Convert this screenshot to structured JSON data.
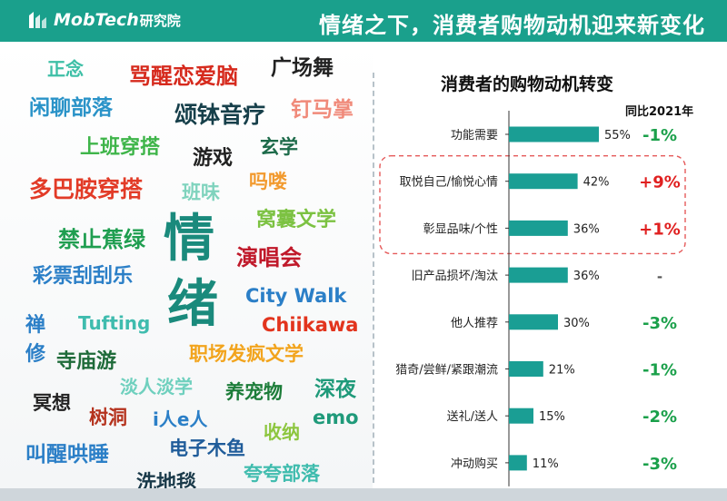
{
  "header": {
    "brand": "MobTech",
    "brand_suffix": "研究院",
    "title": "情绪之下，消费者购物动机迎来新变化"
  },
  "word_cloud": [
    {
      "text": "正念",
      "color": "#3dbfa6"
    },
    {
      "text": "骂醒恋爱脑",
      "color": "#d62a1d"
    },
    {
      "text": "广场舞",
      "color": "#222222"
    },
    {
      "text": "闲聊部落",
      "color": "#2a93c8"
    },
    {
      "text": "颂钵音疗",
      "color": "#163f4a"
    },
    {
      "text": "钉马掌",
      "color": "#f08a7a"
    },
    {
      "text": "上班穿搭",
      "color": "#3fb54a"
    },
    {
      "text": "玄学",
      "color": "#1d6b4a"
    },
    {
      "text": "游戏",
      "color": "#222222"
    },
    {
      "text": "吗喽",
      "color": "#f29a2e"
    },
    {
      "text": "多巴胺穿搭",
      "color": "#e23b27"
    },
    {
      "text": "班味",
      "color": "#7fd3bd"
    },
    {
      "text": "窝囊文学",
      "color": "#7cc242"
    },
    {
      "text": "禁止蕉绿",
      "color": "#1f9e50"
    },
    {
      "text": "情",
      "color": "#1a8a7c"
    },
    {
      "text": "绪",
      "color": "#1a8a7c"
    },
    {
      "text": "演唱会",
      "color": "#c0192a"
    },
    {
      "text": "彩票刮刮乐",
      "color": "#2b7fc7"
    },
    {
      "text": "City Walk",
      "color": "#2b7fc7"
    },
    {
      "text": "禅",
      "color": "#2b7fc7"
    },
    {
      "text": "修",
      "color": "#2b7fc7"
    },
    {
      "text": "Tufting",
      "color": "#3fbcae"
    },
    {
      "text": "Chiikawa",
      "color": "#e2341d"
    },
    {
      "text": "寺庙游",
      "color": "#1f6b3a"
    },
    {
      "text": "职场发疯文学",
      "color": "#f2a41d"
    },
    {
      "text": "淡人淡学",
      "color": "#6fd0be"
    },
    {
      "text": "冥想",
      "color": "#222222"
    },
    {
      "text": "养宠物",
      "color": "#1d7d3a"
    },
    {
      "text": "深夜",
      "color": "#1f9a7a"
    },
    {
      "text": "树洞",
      "color": "#b5321d"
    },
    {
      "text": "i人e人",
      "color": "#2b7fc7"
    },
    {
      "text": "emo",
      "color": "#1f9a7a"
    },
    {
      "text": "收纳",
      "color": "#8dc63f"
    },
    {
      "text": "叫醒哄睡",
      "color": "#2b7fc7"
    },
    {
      "text": "电子木鱼",
      "color": "#1f5c9a"
    },
    {
      "text": "夸夸部落",
      "color": "#3fbcae"
    },
    {
      "text": "洗地毯",
      "color": "#1a3a4a"
    }
  ],
  "chart_data": {
    "type": "bar",
    "orientation": "horizontal",
    "title": "消费者的购物动机转变",
    "yoy_header": "同比2021年",
    "categories": [
      "功能需要",
      "取悦自己/愉悦心情",
      "彰显品味/个性",
      "旧产品损坏/淘汰",
      "他人推荐",
      "猎奇/尝鲜/紧跟潮流",
      "送礼/送人",
      "冲动购买"
    ],
    "values": [
      55,
      42,
      36,
      36,
      30,
      21,
      15,
      11
    ],
    "value_labels": [
      "55%",
      "42%",
      "36%",
      "36%",
      "30%",
      "21%",
      "15%",
      "11%"
    ],
    "yoy": [
      "-1%",
      "+9%",
      "+1%",
      "-",
      "-3%",
      "-1%",
      "-2%",
      "-3%"
    ],
    "highlighted_categories": [
      "取悦自己/愉悦心情",
      "彰显品味/个性"
    ],
    "colors": {
      "bar": "#1a9e94",
      "positive": "#e02020",
      "negative": "#1aa04a",
      "neutral": "#555555",
      "highlight_box": "#e55a5a"
    }
  }
}
